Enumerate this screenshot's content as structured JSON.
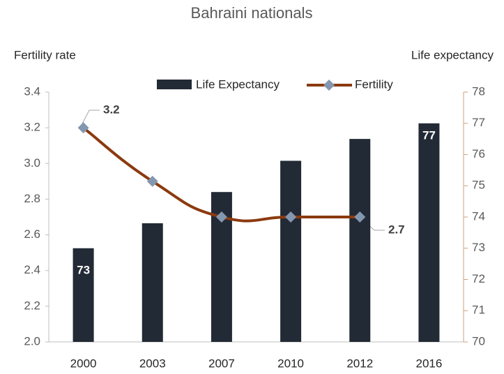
{
  "chart_data": {
    "type": "bar_line",
    "title": "Bahraini nationals",
    "y_label": "Fertility rate",
    "y2_label": "Life expectancy",
    "categories": [
      "2000",
      "2003",
      "2007",
      "2010",
      "2012",
      "2016"
    ],
    "series": [
      {
        "name": "Life Expectancy",
        "type": "bar",
        "axis": "y2",
        "color": "#222a35",
        "values": [
          73,
          73.8,
          74.8,
          75.8,
          76.5,
          77
        ]
      },
      {
        "name": "Fertility",
        "type": "line",
        "axis": "y",
        "color": "#8b3a0f",
        "marker_color": "#8497b0",
        "values": [
          3.2,
          2.9,
          2.7,
          2.7,
          2.7,
          null
        ]
      }
    ],
    "ylim": [
      2.0,
      3.4
    ],
    "yticks": [
      {
        "value": 2,
        "label": "2.0"
      },
      2.2,
      2.4,
      2.6,
      2.8,
      {
        "value": 3,
        "label": "3.0"
      },
      3.2,
      3.4
    ],
    "y2lim": [
      70,
      78
    ],
    "y2ticks": [
      70,
      71,
      72,
      73,
      74,
      75,
      76,
      77,
      78
    ],
    "legend": "top"
  }
}
